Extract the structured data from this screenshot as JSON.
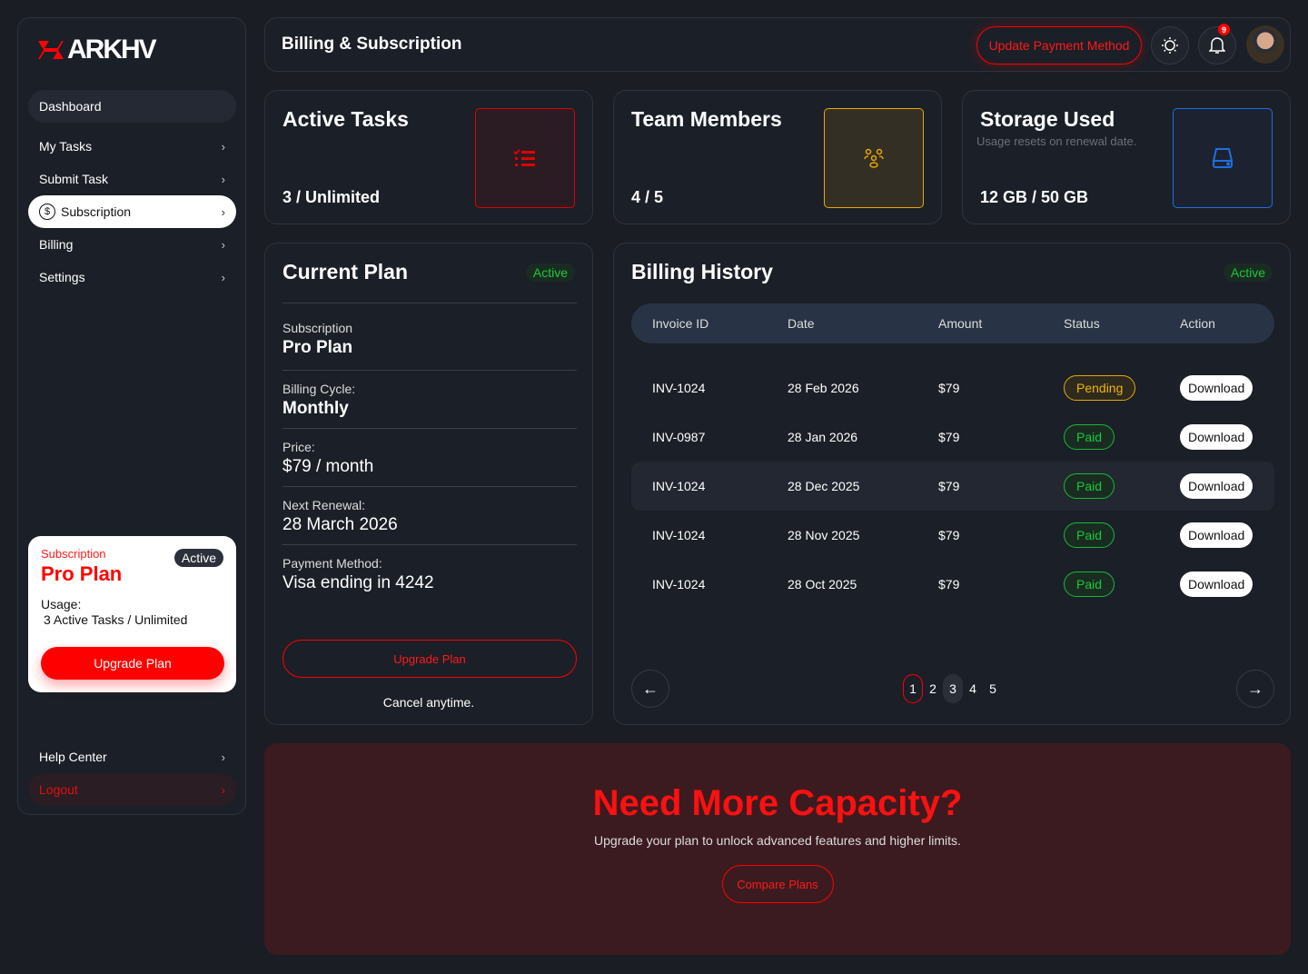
{
  "brand": {
    "name": "ARKHV",
    "accent": "#ff0000"
  },
  "sidebar": {
    "items": [
      {
        "label": "Dashboard"
      },
      {
        "label": "My Tasks"
      },
      {
        "label": "Submit Task"
      },
      {
        "label": "Subscription",
        "icon": "dollar-circle-icon"
      },
      {
        "label": "Billing"
      },
      {
        "label": "Settings"
      }
    ],
    "subscription_card": {
      "label": "Subscription",
      "plan": "Pro Plan",
      "badge": "Active",
      "usage_label": "Usage:",
      "usage_value": "3 Active Tasks / Unlimited",
      "button": "Upgrade Plan"
    },
    "help": "Help Center",
    "logout": "Logout"
  },
  "header": {
    "title": "Billing & Subscription",
    "update_button": "Update Payment Method",
    "notifications": "9"
  },
  "stats": [
    {
      "title": "Active Tasks",
      "value": "3 / Unlimited",
      "icon": "checklist-icon",
      "color": "#e00000"
    },
    {
      "title": "Team Members",
      "value": "4 / 5",
      "icon": "team-icon",
      "color": "#e8a800"
    },
    {
      "title": "Storage Used",
      "subtitle": "Usage resets on renewal date.",
      "value": "12 GB / 50 GB",
      "icon": "hard-drive-icon",
      "color": "#1f6fe0"
    }
  ],
  "current_plan": {
    "title": "Current Plan",
    "badge": "Active",
    "rows": [
      {
        "k": "Subscription",
        "v": "Pro Plan"
      },
      {
        "k": "Billing Cycle:",
        "v": "Monthly"
      },
      {
        "k": "Price:",
        "v": "$79 / month"
      },
      {
        "k": "Next Renewal:",
        "v": "28 March 2026"
      },
      {
        "k": "Payment Method:",
        "v": "Visa ending in 4242"
      }
    ],
    "button": "Upgrade Plan",
    "note": "Cancel anytime."
  },
  "billing": {
    "title": "Billing History",
    "badge": "Active",
    "columns": [
      "Invoice ID",
      "Date",
      "Amount",
      "Status",
      "Action"
    ],
    "rows": [
      {
        "id": "INV-1024",
        "date": "28 Feb 2026",
        "amount": "$79",
        "status": "Pending",
        "action": "Download"
      },
      {
        "id": "INV-0987",
        "date": "28 Jan 2026",
        "amount": "$79",
        "status": "Paid",
        "action": "Download"
      },
      {
        "id": "INV-1024",
        "date": "28 Dec 2025",
        "amount": "$79",
        "status": "Paid",
        "action": "Download"
      },
      {
        "id": "INV-1024",
        "date": "28 Nov 2025",
        "amount": "$79",
        "status": "Paid",
        "action": "Download"
      },
      {
        "id": "INV-1024",
        "date": "28 Oct 2025",
        "amount": "$79",
        "status": "Paid",
        "action": "Download"
      }
    ],
    "pages": [
      "1",
      "2",
      "3",
      "4",
      "5"
    ],
    "current_page": "1"
  },
  "cta": {
    "title": "Need More Capacity?",
    "text": "Upgrade your plan to unlock advanced features and higher limits.",
    "button": "Compare Plans"
  }
}
